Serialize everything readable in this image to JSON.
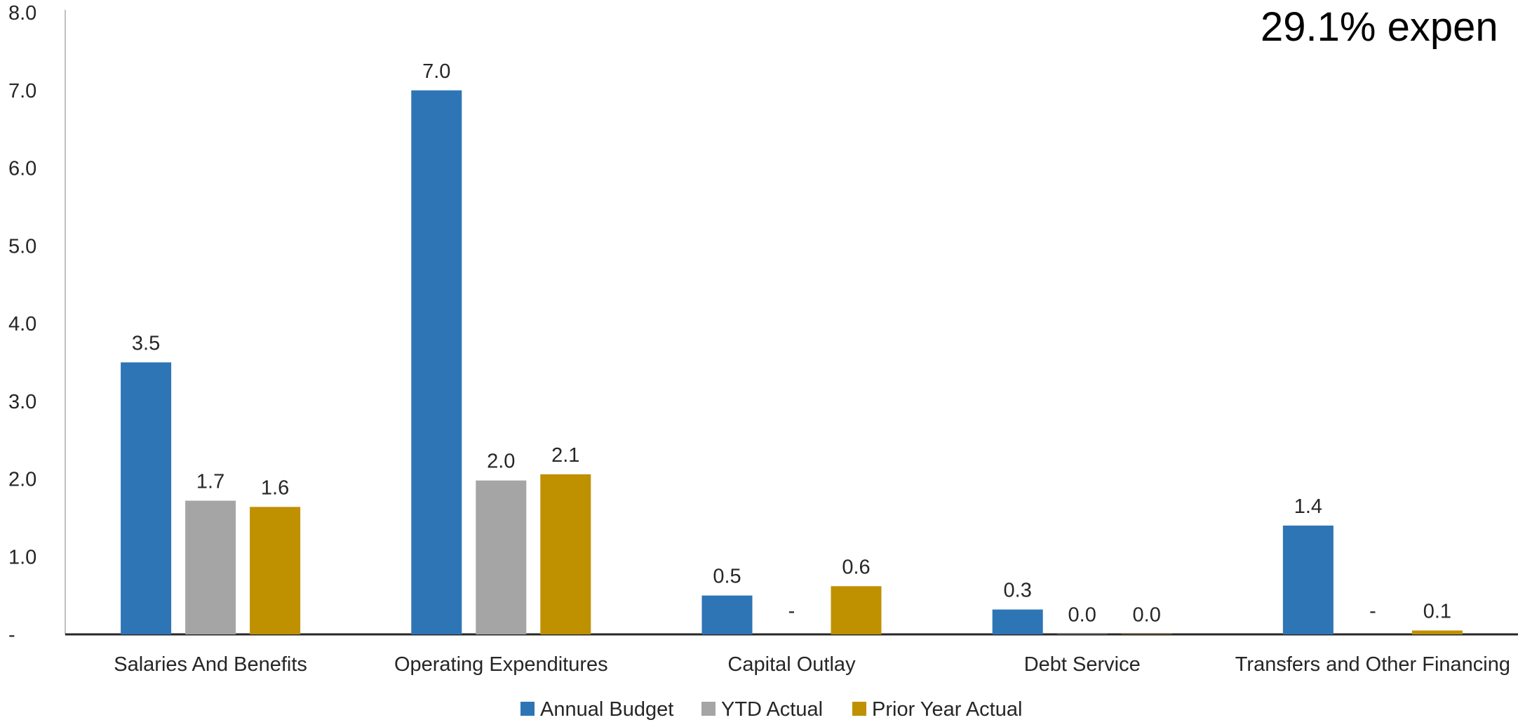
{
  "chart_data": {
    "type": "bar",
    "categories": [
      "Salaries And Benefits",
      "Operating Expenditures",
      "Capital Outlay",
      "Debt Service",
      "Transfers and Other Financing"
    ],
    "series": [
      {
        "name": "Annual Budget",
        "color": "#2E75B6",
        "values": [
          3.5,
          7.0,
          0.5,
          0.32,
          1.4
        ],
        "labels": [
          "3.5",
          "7.0",
          "0.5",
          "0.3",
          "1.4"
        ]
      },
      {
        "name": "YTD Actual",
        "color": "#A5A5A5",
        "values": [
          1.72,
          1.98,
          0,
          0.004,
          0
        ],
        "labels": [
          "1.7",
          "2.0",
          "-",
          "0.0",
          "-"
        ]
      },
      {
        "name": "Prior Year Actual",
        "color": "#BF9000",
        "values": [
          1.64,
          2.06,
          0.62,
          0.004,
          0.05
        ],
        "labels": [
          "1.6",
          "2.1",
          "0.6",
          "0.0",
          "0.1"
        ]
      }
    ],
    "ylim": [
      0,
      8
    ],
    "yticks": [
      {
        "value": 0,
        "label": "-"
      },
      {
        "value": 1,
        "label": "1.0"
      },
      {
        "value": 2,
        "label": "2.0"
      },
      {
        "value": 3,
        "label": "3.0"
      },
      {
        "value": 4,
        "label": "4.0"
      },
      {
        "value": 5,
        "label": "5.0"
      },
      {
        "value": 6,
        "label": "6.0"
      },
      {
        "value": 7,
        "label": "7.0"
      },
      {
        "value": 8,
        "label": "8.0"
      }
    ],
    "grid": false,
    "legend_position": "bottom",
    "annotation": "29.1% expen"
  }
}
